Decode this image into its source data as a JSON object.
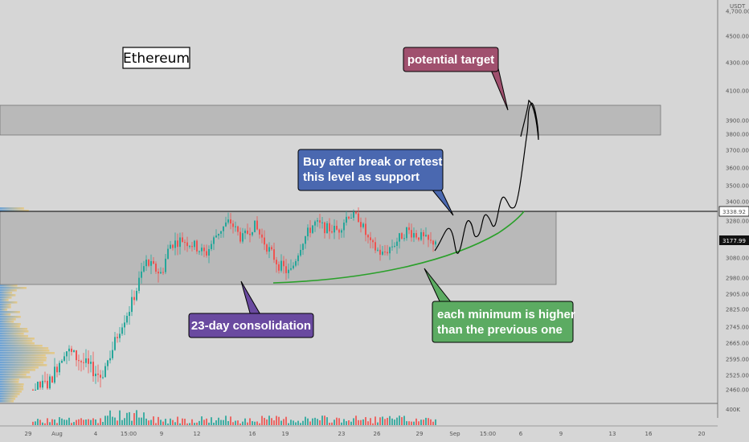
{
  "chart_data": {
    "type": "candlestick",
    "title": "Ethereum",
    "currency": "USDT",
    "y_ticks": [
      {
        "label": "4,700.00",
        "value": 4700
      },
      {
        "label": "4500.00",
        "value": 4500
      },
      {
        "label": "4300.00",
        "value": 4300
      },
      {
        "label": "4100.00",
        "value": 4100
      },
      {
        "label": "3900.00",
        "value": 3900
      },
      {
        "label": "3800.00",
        "value": 3800
      },
      {
        "label": "3700.00",
        "value": 3700
      },
      {
        "label": "3600.00",
        "value": 3600
      },
      {
        "label": "3500.00",
        "value": 3500
      },
      {
        "label": "3400.00",
        "value": 3400
      },
      {
        "label": "3280.00",
        "value": 3280
      },
      {
        "label": "3080.00",
        "value": 3080
      },
      {
        "label": "2980.00",
        "value": 2980
      },
      {
        "label": "2905.00",
        "value": 2905
      },
      {
        "label": "2825.00",
        "value": 2825
      },
      {
        "label": "2745.00",
        "value": 2745
      },
      {
        "label": "2665.00",
        "value": 2665
      },
      {
        "label": "2595.00",
        "value": 2595
      },
      {
        "label": "2525.00",
        "value": 2525
      },
      {
        "label": "2460.00",
        "value": 2460
      }
    ],
    "volume_tick": "400K",
    "x_ticks": [
      "29",
      "Aug",
      "4",
      "15:00",
      "9",
      "12",
      "16",
      "19",
      "23",
      "26",
      "29",
      "Sep",
      "15:00",
      "6",
      "9",
      "13",
      "16",
      "20"
    ],
    "price_labels": {
      "resistance": "3338.92",
      "current": "3177.99"
    },
    "annotations": {
      "potential_target": "potential target",
      "buy_line1": "Buy after break or retest",
      "buy_line2": "this level as support",
      "consolidation": "23-day consolidation",
      "higher_lows_line1": "each minimum is higher",
      "higher_lows_line2": "than the previous one"
    },
    "zones": [
      {
        "name": "target-zone",
        "from": 3800,
        "to": 4010
      },
      {
        "name": "consolidation-zone",
        "from": 2950,
        "to": 3338.92
      }
    ],
    "colors": {
      "up": "#26a69a",
      "down": "#ef5350",
      "target_callout": "#a0506e",
      "buy_callout": "#4a68b0",
      "consolidation_callout": "#6a4aa0",
      "higher_lows_callout": "#5cab62",
      "support_curve": "#2aa02a"
    }
  }
}
